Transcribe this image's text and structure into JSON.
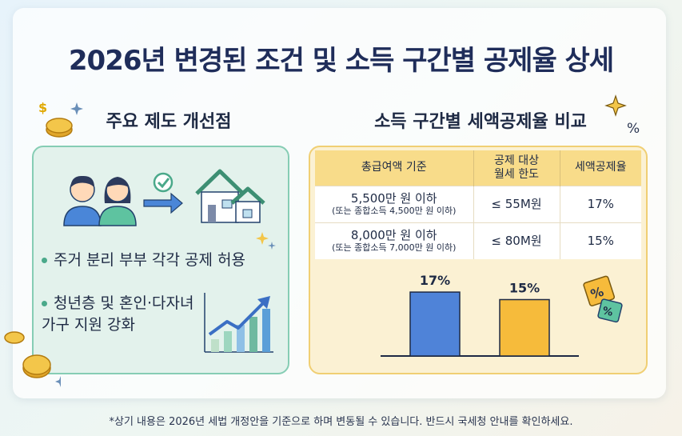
{
  "title": "2026년 변경된 조건 및 소득 구간별 공제율 상세",
  "left_section": {
    "heading": "주요 제도 개선점",
    "bullets": [
      {
        "lines": [
          "주거 분리 부부 각각 공제 허용"
        ]
      },
      {
        "lines": [
          "청년층 및 혼인·다자녀",
          "가구 지원 강화"
        ]
      }
    ]
  },
  "right_section": {
    "heading": "소득 구간별 세액공제율 비교",
    "table": {
      "headers": {
        "col1": "총급여액 기준",
        "col2_line1": "공제 대상",
        "col2_line2": "월세 한도",
        "col3": "세액공제율"
      },
      "rows": [
        {
          "income": "5,500만 원 이하",
          "note": "(또는 종합소득 4,500만 원 이하)",
          "limit": "≤ 55M원",
          "rate": "17%"
        },
        {
          "income": "8,000만 원 이하",
          "note": "(또는 종합소득 7,000만 원 이하)",
          "limit": "≤ 80M원",
          "rate": "15%"
        }
      ]
    }
  },
  "chart_data": {
    "type": "bar",
    "categories": [
      "",
      ""
    ],
    "values": [
      17,
      15
    ],
    "value_labels": [
      "17%",
      "15%"
    ],
    "colors": [
      "#4f83d8",
      "#f6bb3b"
    ],
    "title": "",
    "xlabel": "",
    "ylabel": ""
  },
  "footnote": "*상기 내용은 2026년 세법 개정안을 기준으로 하며 변동될 수 있습니다. 반드시 국세청 안내를 확인하세요."
}
